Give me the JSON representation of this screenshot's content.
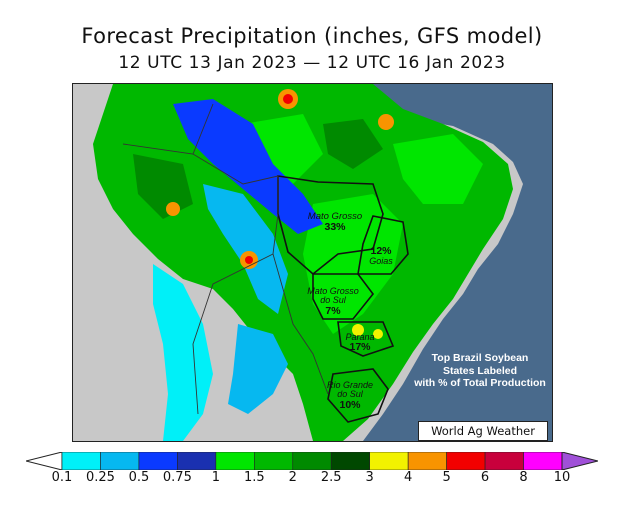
{
  "title": "Forecast Precipitation (inches, GFS model)",
  "subtitle": "12 UTC 13 Jan 2023 — 12 UTC 16 Jan 2023",
  "colors": {
    "ocean": "#496a8c",
    "land_dry": "#c8c8c8",
    "country_border": "#222222"
  },
  "states": [
    {
      "name": "Mato Grosso",
      "pct": "33%"
    },
    {
      "name": "Goias",
      "pct": "12%"
    },
    {
      "name": "Mato Grosso do Sul",
      "pct": "7%"
    },
    {
      "name": "Parana",
      "pct": "17%"
    },
    {
      "name": "Rio Grande do Sul",
      "pct": "10%"
    }
  ],
  "state_labels": {
    "mato_grosso": "Mato Grosso",
    "goias": "Goias",
    "mato_grosso_do_sul_1": "Mato Grosso",
    "mato_grosso_do_sul_2": "do Sul",
    "parana": "Parana",
    "rio_grande_do_sul_1": "Rio Grande",
    "rio_grande_do_sul_2": "do Sul"
  },
  "info_lines": [
    "Top Brazil Soybean",
    "States Labeled",
    "with % of Total Production"
  ],
  "credit": "World Ag Weather",
  "legend": {
    "ticks": [
      "0.1",
      "0.25",
      "0.5",
      "0.75",
      "1",
      "1.5",
      "2",
      "2.5",
      "3",
      "4",
      "5",
      "6",
      "8",
      "10"
    ],
    "colors": [
      "#00f0f8",
      "#06b8f0",
      "#0a3aff",
      "#1a30b0",
      "#00e600",
      "#00b800",
      "#008a00",
      "#004800",
      "#f2f200",
      "#f89400",
      "#f20000",
      "#c8003c",
      "#ff00ff",
      "#a050d8"
    ]
  }
}
